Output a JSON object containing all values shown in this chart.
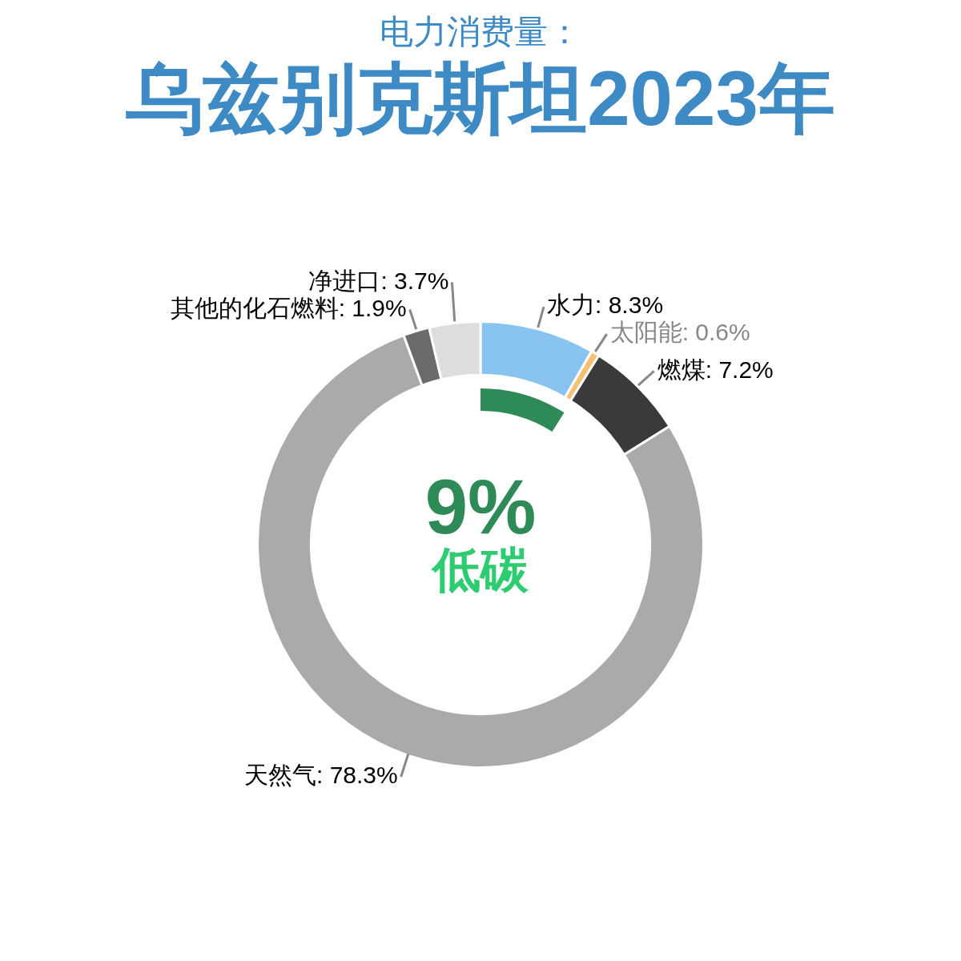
{
  "chart_data": {
    "type": "donut",
    "subtitle": "电力消费量：",
    "title": "乌兹别克斯坦2023年",
    "categories": [
      "水力",
      "太阳能",
      "燃煤",
      "天然气",
      "其他的化石燃料",
      "净进口"
    ],
    "values": [
      8.3,
      0.6,
      7.2,
      78.3,
      1.9,
      3.7
    ],
    "colors": [
      "#89c3f0",
      "#f5c06f",
      "#3a3a3a",
      "#aaaaaa",
      "#6b6b6b",
      "#dddddd"
    ],
    "value_labels": [
      "8.3%",
      "0.6%",
      "7.2%",
      "78.3%",
      "1.9%",
      "3.7%"
    ],
    "annotations": [
      "9%",
      "低碳"
    ],
    "legend": false
  }
}
